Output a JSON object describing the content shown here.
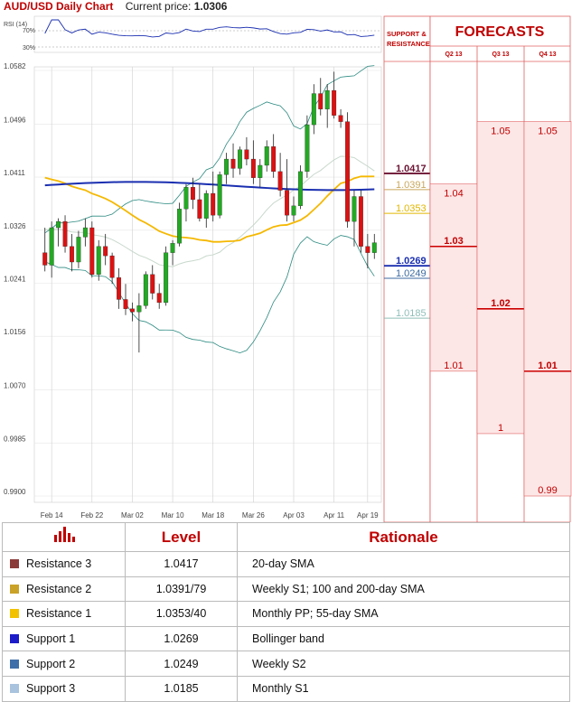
{
  "header": {
    "title": "AUD/USD Daily Chart",
    "price_label": "Current price:",
    "price": "1.0306"
  },
  "chart_data": {
    "type": "candlestick",
    "title": "AUD/USD Daily Chart",
    "y_ticks": [
      "1.0582",
      "1.0496",
      "1.0411",
      "1.0326",
      "1.0241",
      "1.0156",
      "1.0070",
      "0.9985",
      "0.9900"
    ],
    "x_ticks": [
      "Feb 14",
      "Feb 22",
      "Mar 02",
      "Mar 10",
      "Mar 18",
      "Mar 26",
      "Apr 03",
      "Apr 11",
      "Apr 19"
    ],
    "ylim": [
      0.99,
      1.0582
    ],
    "rsi_label": "RSI (14)",
    "rsi_ticks": [
      "70%",
      "30%"
    ],
    "candles": [
      {
        "o": 1.029,
        "h": 1.033,
        "l": 1.026,
        "c": 1.027
      },
      {
        "o": 1.027,
        "h": 1.034,
        "l": 1.025,
        "c": 1.033
      },
      {
        "o": 1.033,
        "h": 1.0345,
        "l": 1.03,
        "c": 1.034
      },
      {
        "o": 1.034,
        "h": 1.035,
        "l": 1.029,
        "c": 1.03
      },
      {
        "o": 1.03,
        "h": 1.032,
        "l": 1.026,
        "c": 1.0275
      },
      {
        "o": 1.0275,
        "h": 1.0325,
        "l": 1.0265,
        "c": 1.0315
      },
      {
        "o": 1.0315,
        "h": 1.0345,
        "l": 1.03,
        "c": 1.033
      },
      {
        "o": 1.033,
        "h": 1.034,
        "l": 1.025,
        "c": 1.0255
      },
      {
        "o": 1.0255,
        "h": 1.031,
        "l": 1.0245,
        "c": 1.03
      },
      {
        "o": 1.03,
        "h": 1.032,
        "l": 1.027,
        "c": 1.0285
      },
      {
        "o": 1.0285,
        "h": 1.029,
        "l": 1.024,
        "c": 1.025
      },
      {
        "o": 1.025,
        "h": 1.0265,
        "l": 1.02,
        "c": 1.0215
      },
      {
        "o": 1.0215,
        "h": 1.024,
        "l": 1.019,
        "c": 1.02
      },
      {
        "o": 1.02,
        "h": 1.021,
        "l": 1.018,
        "c": 1.0195
      },
      {
        "o": 1.0195,
        "h": 1.0225,
        "l": 1.013,
        "c": 1.0205
      },
      {
        "o": 1.0205,
        "h": 1.026,
        "l": 1.02,
        "c": 1.0255
      },
      {
        "o": 1.0255,
        "h": 1.027,
        "l": 1.0215,
        "c": 1.0225
      },
      {
        "o": 1.0225,
        "h": 1.024,
        "l": 1.02,
        "c": 1.021
      },
      {
        "o": 1.021,
        "h": 1.03,
        "l": 1.0205,
        "c": 1.029
      },
      {
        "o": 1.029,
        "h": 1.031,
        "l": 1.027,
        "c": 1.0305
      },
      {
        "o": 1.0305,
        "h": 1.037,
        "l": 1.03,
        "c": 1.036
      },
      {
        "o": 1.036,
        "h": 1.04,
        "l": 1.034,
        "c": 1.0395
      },
      {
        "o": 1.0395,
        "h": 1.041,
        "l": 1.036,
        "c": 1.0375
      },
      {
        "o": 1.0375,
        "h": 1.04,
        "l": 1.034,
        "c": 1.0345
      },
      {
        "o": 1.0345,
        "h": 1.039,
        "l": 1.033,
        "c": 1.0385
      },
      {
        "o": 1.0385,
        "h": 1.042,
        "l": 1.034,
        "c": 1.035
      },
      {
        "o": 1.035,
        "h": 1.042,
        "l": 1.0345,
        "c": 1.0415
      },
      {
        "o": 1.0415,
        "h": 1.045,
        "l": 1.04,
        "c": 1.044
      },
      {
        "o": 1.044,
        "h": 1.0465,
        "l": 1.041,
        "c": 1.0425
      },
      {
        "o": 1.0425,
        "h": 1.046,
        "l": 1.0415,
        "c": 1.0455
      },
      {
        "o": 1.0455,
        "h": 1.0475,
        "l": 1.043,
        "c": 1.044
      },
      {
        "o": 1.044,
        "h": 1.047,
        "l": 1.04,
        "c": 1.041
      },
      {
        "o": 1.041,
        "h": 1.044,
        "l": 1.0395,
        "c": 1.043
      },
      {
        "o": 1.043,
        "h": 1.047,
        "l": 1.042,
        "c": 1.046
      },
      {
        "o": 1.046,
        "h": 1.048,
        "l": 1.041,
        "c": 1.042
      },
      {
        "o": 1.042,
        "h": 1.045,
        "l": 1.038,
        "c": 1.039
      },
      {
        "o": 1.039,
        "h": 1.044,
        "l": 1.034,
        "c": 1.035
      },
      {
        "o": 1.035,
        "h": 1.038,
        "l": 1.034,
        "c": 1.0365
      },
      {
        "o": 1.0365,
        "h": 1.043,
        "l": 1.036,
        "c": 1.042
      },
      {
        "o": 1.042,
        "h": 1.051,
        "l": 1.041,
        "c": 1.0495
      },
      {
        "o": 1.0495,
        "h": 1.056,
        "l": 1.048,
        "c": 1.0545
      },
      {
        "o": 1.0545,
        "h": 1.057,
        "l": 1.051,
        "c": 1.052
      },
      {
        "o": 1.052,
        "h": 1.056,
        "l": 1.049,
        "c": 1.055
      },
      {
        "o": 1.055,
        "h": 1.058,
        "l": 1.0505,
        "c": 1.051
      },
      {
        "o": 1.051,
        "h": 1.052,
        "l": 1.049,
        "c": 1.05
      },
      {
        "o": 1.05,
        "h": 1.0515,
        "l": 1.033,
        "c": 1.034
      },
      {
        "o": 1.034,
        "h": 1.039,
        "l": 1.03,
        "c": 1.038
      },
      {
        "o": 1.038,
        "h": 1.039,
        "l": 1.029,
        "c": 1.03
      },
      {
        "o": 1.03,
        "h": 1.032,
        "l": 1.0265,
        "c": 1.029
      },
      {
        "o": 1.029,
        "h": 1.032,
        "l": 1.028,
        "c": 1.0306
      }
    ],
    "series_colors": {
      "sma200": "#1a2fb0",
      "sma55": "#f5b800",
      "sma20": "#c8d8cc",
      "bollinger": "#2c8a80",
      "rsi": "#1a2fb0",
      "candle_up": "#22aa22",
      "candle_down": "#dd1111"
    }
  },
  "support_resistance": {
    "title_line1": "SUPPORT &",
    "title_line2": "RESISTANCE",
    "labels": [
      {
        "value": "1.0417",
        "color": "#6b1232",
        "bold": true
      },
      {
        "value": "1.0391",
        "color": "#c9a85e",
        "bold": false
      },
      {
        "value": "1.0353",
        "color": "#e0b800",
        "bold": false
      },
      {
        "value": "1.0269",
        "color": "#1a2fb0",
        "bold": true
      },
      {
        "value": "1.0249",
        "color": "#3b6aa0",
        "bold": false
      },
      {
        "value": "1.0185",
        "color": "#8fbfb8",
        "bold": false
      }
    ]
  },
  "forecasts": {
    "title": "FORECASTS",
    "quarters": [
      "Q2 13",
      "Q3 13",
      "Q4 13"
    ],
    "columns": [
      {
        "top": "1.04",
        "mid": "1.03",
        "bottom": "1.01"
      },
      {
        "top": "1.05",
        "mid": "1.02",
        "bottom": "1"
      },
      {
        "top": "1.05",
        "mid": "1.01",
        "bottom": "0.99"
      }
    ]
  },
  "table": {
    "col_level": "Level",
    "col_rationale": "Rationale",
    "rows": [
      {
        "name": "Resistance 3",
        "color": "#8b3a3a",
        "level": "1.0417",
        "rationale": "20-day SMA"
      },
      {
        "name": "Resistance 2",
        "color": "#c9a227",
        "level": "1.0391/79",
        "rationale": "Weekly S1; 100 and 200-day SMA"
      },
      {
        "name": "Resistance 1",
        "color": "#f2c200",
        "level": "1.0353/40",
        "rationale": "Monthly PP; 55-day SMA"
      },
      {
        "name": "Support 1",
        "color": "#1c1cc8",
        "level": "1.0269",
        "rationale": "Bollinger band"
      },
      {
        "name": "Support 2",
        "color": "#3f6fa8",
        "level": "1.0249",
        "rationale": "Weekly S2"
      },
      {
        "name": "Support 3",
        "color": "#a9c3de",
        "level": "1.0185",
        "rationale": "Monthly S1"
      }
    ]
  }
}
